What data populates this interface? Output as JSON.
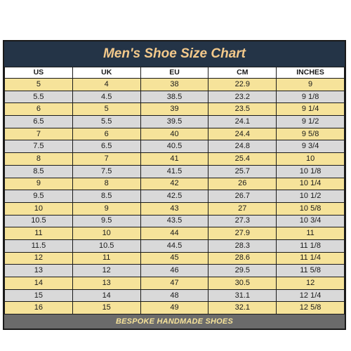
{
  "title": "Men's Shoe Size Chart",
  "columns": [
    "US",
    "UK",
    "EU",
    "CM",
    "INCHES"
  ],
  "rows": [
    [
      "5",
      "4",
      "38",
      "22.9",
      "9"
    ],
    [
      "5.5",
      "4.5",
      "38.5",
      "23.2",
      "9 1/8"
    ],
    [
      "6",
      "5",
      "39",
      "23.5",
      "9 1/4"
    ],
    [
      "6.5",
      "5.5",
      "39.5",
      "24.1",
      "9 1/2"
    ],
    [
      "7",
      "6",
      "40",
      "24.4",
      "9 5/8"
    ],
    [
      "7.5",
      "6.5",
      "40.5",
      "24.8",
      "9 3/4"
    ],
    [
      "8",
      "7",
      "41",
      "25.4",
      "10"
    ],
    [
      "8.5",
      "7.5",
      "41.5",
      "25.7",
      "10 1/8"
    ],
    [
      "9",
      "8",
      "42",
      "26",
      "10 1/4"
    ],
    [
      "9.5",
      "8.5",
      "42.5",
      "26.7",
      "10 1/2"
    ],
    [
      "10",
      "9",
      "43",
      "27",
      "10 5/8"
    ],
    [
      "10.5",
      "9.5",
      "43.5",
      "27.3",
      "10 3/4"
    ],
    [
      "11",
      "10",
      "44",
      "27.9",
      "11"
    ],
    [
      "11.5",
      "10.5",
      "44.5",
      "28.3",
      "11 1/8"
    ],
    [
      "12",
      "11",
      "45",
      "28.6",
      "11 1/4"
    ],
    [
      "13",
      "12",
      "46",
      "29.5",
      "11 5/8"
    ],
    [
      "14",
      "13",
      "47",
      "30.5",
      "12"
    ],
    [
      "15",
      "14",
      "48",
      "31.1",
      "12 1/4"
    ],
    [
      "16",
      "15",
      "49",
      "32.1",
      "12 5/8"
    ]
  ],
  "footer": "BESPOKE HANDMADE SHOES",
  "colors": {
    "title_bg": "#243447",
    "title_text": "#f3c98b",
    "row_yellow": "#f6e39a",
    "row_gray": "#d9d9d9",
    "footer_bg": "#6b6b6b"
  }
}
